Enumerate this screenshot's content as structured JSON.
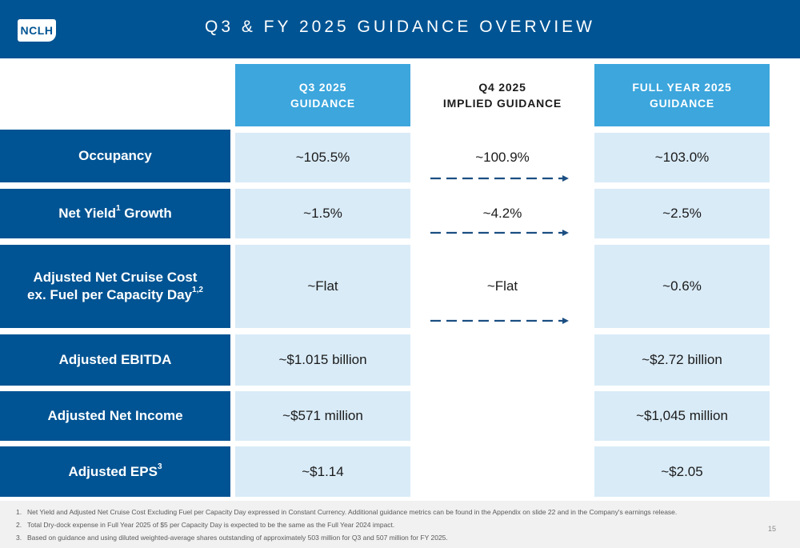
{
  "header": {
    "logo_text": "NCLH",
    "title": "Q3 & FY 2025 GUIDANCE OVERVIEW"
  },
  "columns": [
    {
      "line1": "Q3 2025",
      "line2": "GUIDANCE"
    },
    {
      "line1": "Q4 2025",
      "line2": "IMPLIED GUIDANCE"
    },
    {
      "line1": "FULL YEAR 2025",
      "line2": "GUIDANCE"
    }
  ],
  "rows": [
    {
      "label": "Occupancy",
      "q3": "~105.5%",
      "q4": "~100.9%",
      "fy": "~103.0%"
    },
    {
      "label": "Net Yield",
      "label_sup": "1",
      "label_tail": " Growth",
      "q3": "~1.5%",
      "q4": "~4.2%",
      "fy": "~2.5%"
    },
    {
      "label": "Adjusted Net Cruise Cost",
      "label_line2": "ex. Fuel per Capacity Day",
      "label_sup": "1,2",
      "q3": "~Flat",
      "q4": "~Flat",
      "fy": "~0.6%"
    },
    {
      "label": "Adjusted EBITDA",
      "q3": "~$1.015 billion",
      "fy": "~$2.72 billion"
    },
    {
      "label": "Adjusted Net Income",
      "q3": "~$571 million",
      "fy": "~$1,045 million"
    },
    {
      "label": "Adjusted EPS",
      "label_sup": "3",
      "q3": "~$1.14",
      "fy": "~$2.05"
    }
  ],
  "footnotes": [
    {
      "num": "1.",
      "text": "Net Yield and Adjusted Net Cruise Cost Excluding Fuel per Capacity Day expressed in Constant Currency. Additional guidance metrics can be found in the Appendix on slide 22 and in the Company's earnings release."
    },
    {
      "num": "2.",
      "text": "Total Dry-dock expense in Full Year 2025 of $5 per Capacity Day is expected to be the same as the Full Year 2024 impact."
    },
    {
      "num": "3.",
      "text": "Based on guidance and using diluted weighted-average shares outstanding of approximately 503 million for Q3 and 507 million for FY 2025."
    }
  ],
  "page_number": "15",
  "colors": {
    "navy": "#005493",
    "sky": "#3ca6dd",
    "pale": "#d9ebf7",
    "arrow": "#1b4f82"
  }
}
